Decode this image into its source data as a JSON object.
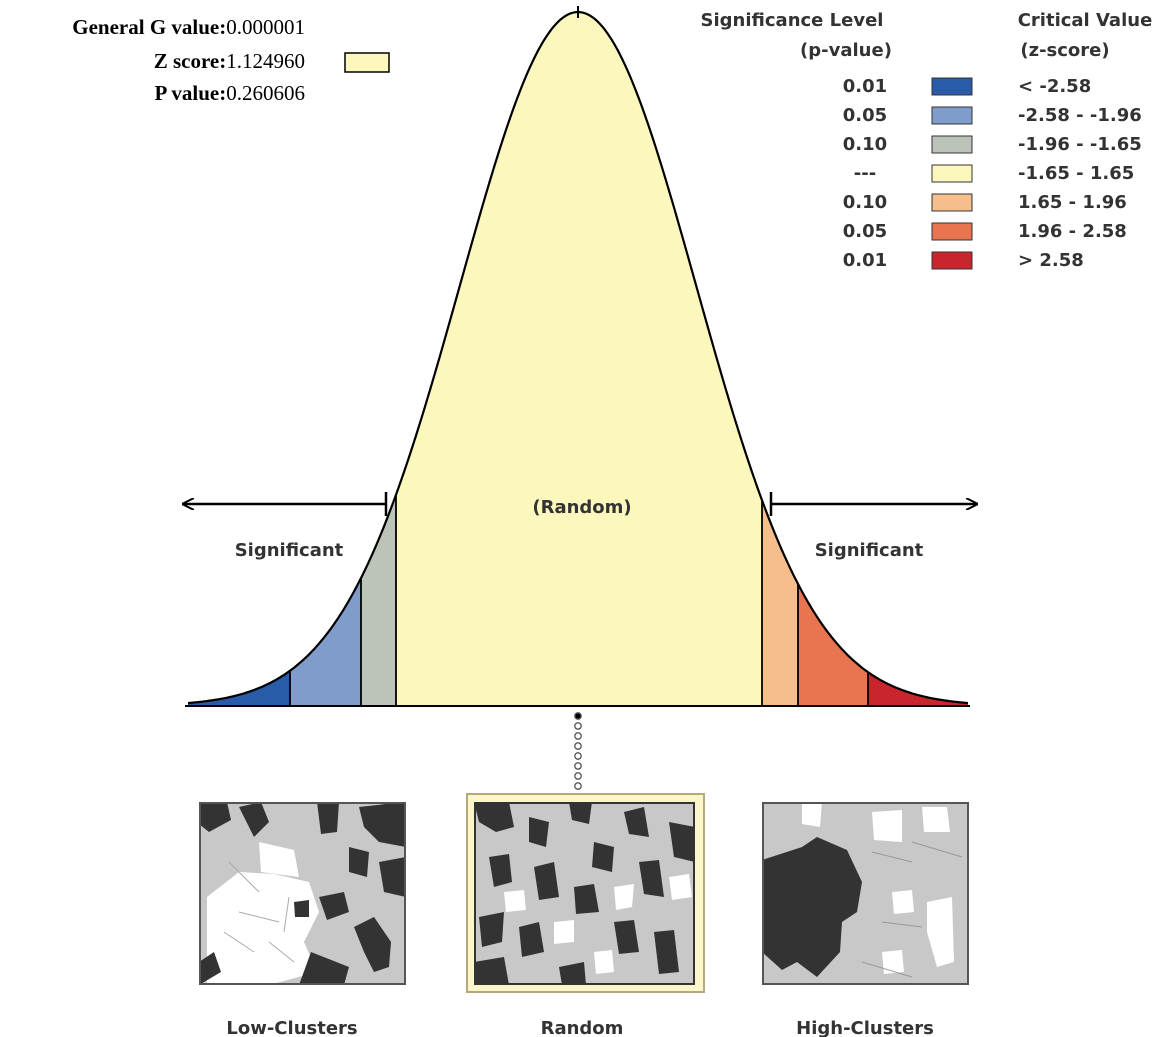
{
  "stats": {
    "g_label": "General G value:",
    "g_value": "0.000001",
    "z_label": "Z score:",
    "z_value": "1.124960",
    "p_label": "P value:",
    "p_value": "0.260606"
  },
  "legend": {
    "sig_heading_line1": "Significance Level",
    "sig_heading_line2": "(p-value)",
    "crit_heading_line1": "Critical Value",
    "crit_heading_line2": "(z-score)",
    "rows": [
      {
        "p": "0.01",
        "z": "< -2.58",
        "color": "#2a5ba8"
      },
      {
        "p": "0.05",
        "z": "-2.58 - -1.96",
        "color": "#7f9ccb"
      },
      {
        "p": "0.10",
        "z": "-1.96 - -1.65",
        "color": "#bcc4b9"
      },
      {
        "p": "---",
        "z": "-1.65 - 1.65",
        "color": "#fbf7bd"
      },
      {
        "p": "0.10",
        "z": "1.65 - 1.96",
        "color": "#f6bd8d"
      },
      {
        "p": "0.05",
        "z": "1.96 - 2.58",
        "color": "#e8754f"
      },
      {
        "p": "0.01",
        "z": "> 2.58",
        "color": "#c9252c"
      }
    ]
  },
  "curve": {
    "center_label": "(Random)",
    "left_label": "Significant",
    "right_label": "Significant"
  },
  "maps": [
    {
      "label": "Low-Clusters"
    },
    {
      "label": "Random"
    },
    {
      "label": "High-Clusters"
    }
  ]
}
